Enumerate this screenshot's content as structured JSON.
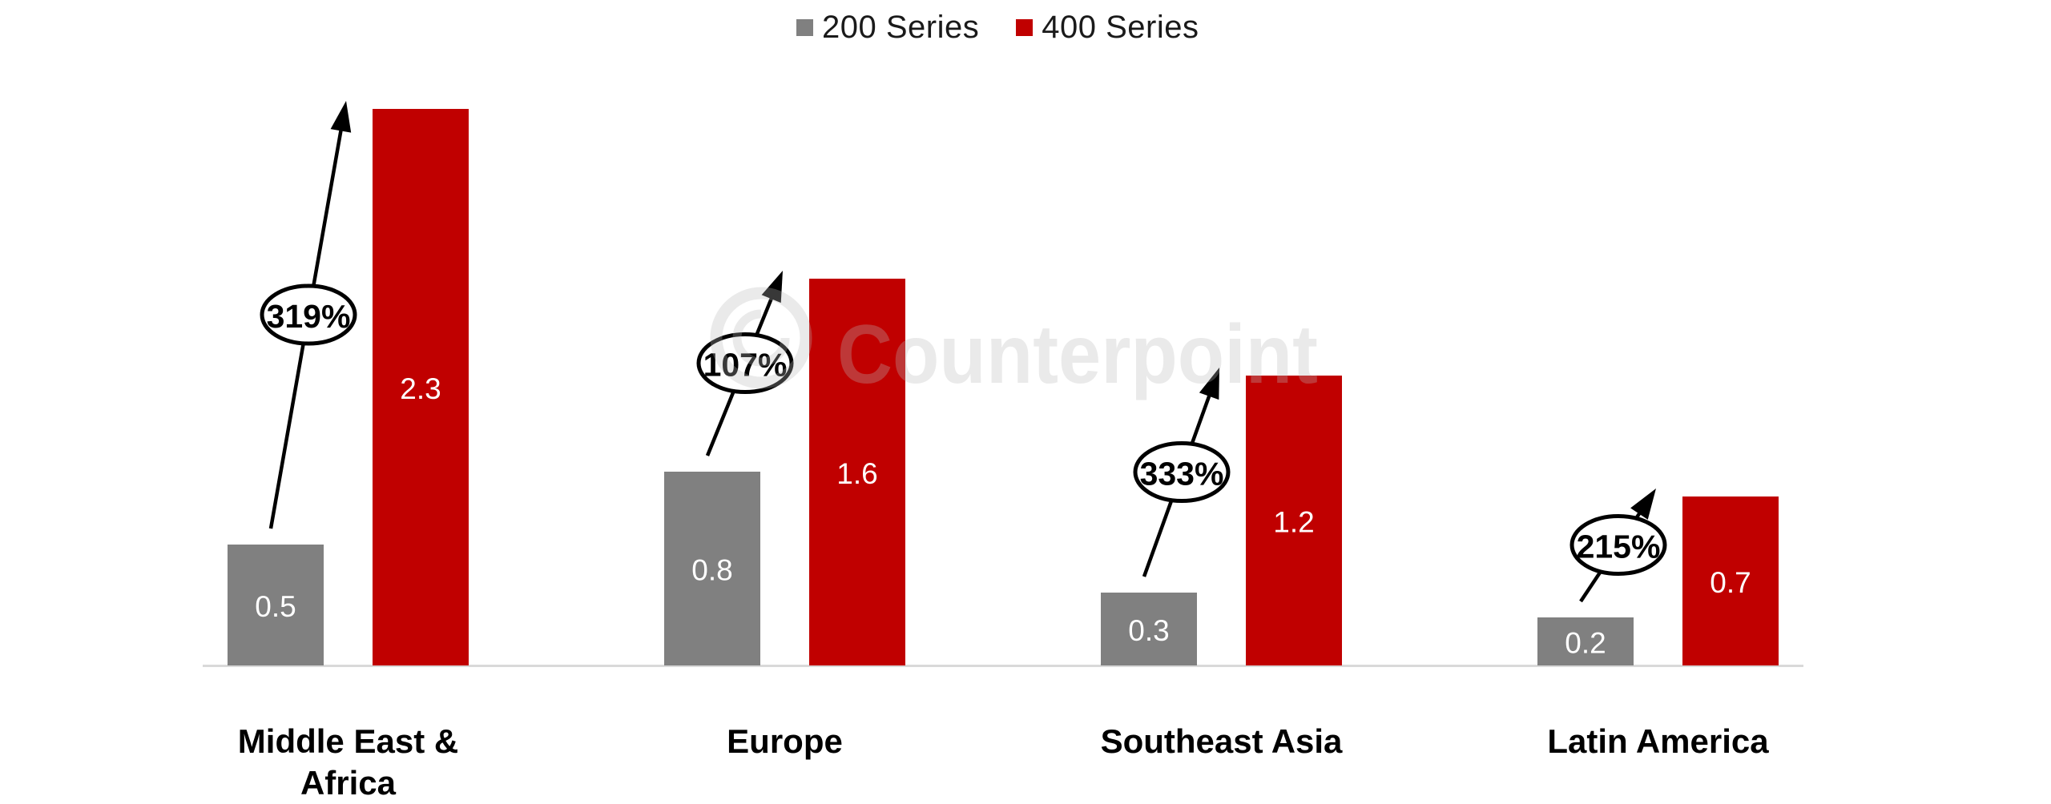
{
  "legend": {
    "items": [
      {
        "label": "200 Series",
        "color": "#808080"
      },
      {
        "label": "400 Series",
        "color": "#c00000"
      }
    ]
  },
  "watermark": {
    "text": "Counterpoint"
  },
  "chart_data": {
    "type": "bar",
    "categories": [
      "Middle East & Africa",
      "Europe",
      "Southeast Asia",
      "Latin America"
    ],
    "series": [
      {
        "name": "200 Series",
        "color": "#808080",
        "values": [
          0.5,
          0.8,
          0.3,
          0.2
        ]
      },
      {
        "name": "400 Series",
        "color": "#c00000",
        "values": [
          2.3,
          1.6,
          1.2,
          0.7
        ]
      }
    ],
    "growth_annotations": [
      "319%",
      "107%",
      "333%",
      "215%"
    ],
    "value_label_color": "#ffffff",
    "annotation_text_color": "#000000",
    "category_label_color": "#000000",
    "axis_line_color": "#d9d9d9",
    "ylim": [
      0,
      2.5
    ],
    "grid": false,
    "legend_position": "top-center"
  }
}
